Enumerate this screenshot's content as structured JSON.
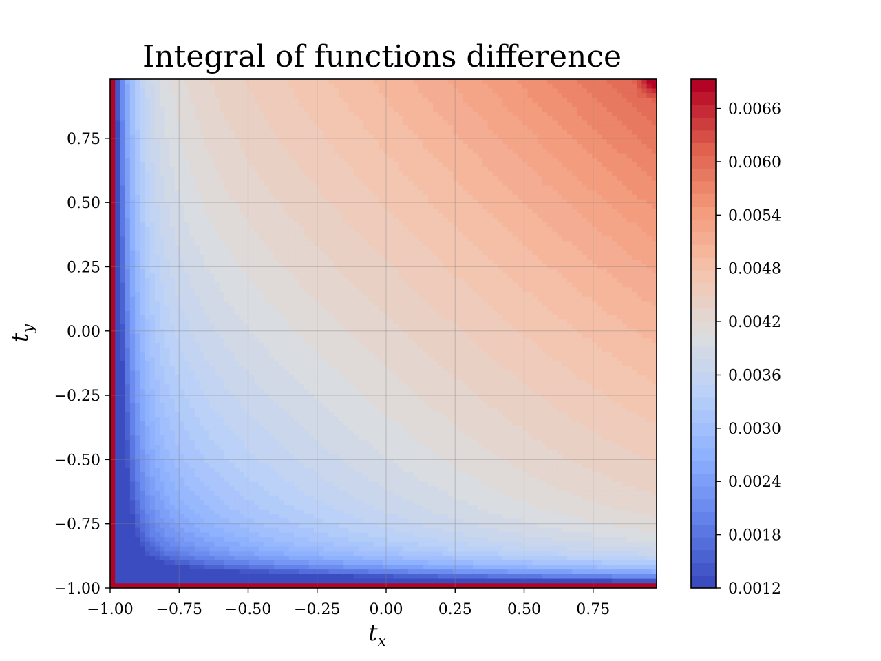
{
  "chart_data": {
    "type": "heatmap",
    "title": "Integral of functions difference",
    "xlabel": {
      "base": "t",
      "sub": "x"
    },
    "ylabel": {
      "base": "t",
      "sub": "y"
    },
    "xlim": [
      -1.0,
      0.98
    ],
    "ylim": [
      -1.0,
      0.98
    ],
    "grid": true,
    "colormap": "coolwarm",
    "contour_levels": 40,
    "z_range": [
      0.0012,
      0.0069
    ],
    "z_formula": "0.0043 + 0.0014*(tx + ty)/2 + 0.0008*tx*ty*((tx+ty)/2); edges at tx=-1 or ty=-1 rise to max",
    "x_ticks": [
      {
        "value": -1.0,
        "label": "−1.00"
      },
      {
        "value": -0.75,
        "label": "−0.75"
      },
      {
        "value": -0.5,
        "label": "−0.50"
      },
      {
        "value": -0.25,
        "label": "−0.25"
      },
      {
        "value": 0.0,
        "label": "0.00"
      },
      {
        "value": 0.25,
        "label": "0.25"
      },
      {
        "value": 0.5,
        "label": "0.50"
      },
      {
        "value": 0.75,
        "label": "0.75"
      }
    ],
    "y_ticks": [
      {
        "value": -1.0,
        "label": "−1.00"
      },
      {
        "value": -0.75,
        "label": "−0.75"
      },
      {
        "value": -0.5,
        "label": "−0.50"
      },
      {
        "value": -0.25,
        "label": "−0.25"
      },
      {
        "value": 0.0,
        "label": "0.00"
      },
      {
        "value": 0.25,
        "label": "0.25"
      },
      {
        "value": 0.5,
        "label": "0.50"
      },
      {
        "value": 0.75,
        "label": "0.75"
      }
    ],
    "colorbar_ticks": [
      {
        "value": 0.0012,
        "label": "0.0012"
      },
      {
        "value": 0.0018,
        "label": "0.0018"
      },
      {
        "value": 0.0024,
        "label": "0.0024"
      },
      {
        "value": 0.003,
        "label": "0.0030"
      },
      {
        "value": 0.0036,
        "label": "0.0036"
      },
      {
        "value": 0.0042,
        "label": "0.0042"
      },
      {
        "value": 0.0048,
        "label": "0.0048"
      },
      {
        "value": 0.0054,
        "label": "0.0054"
      },
      {
        "value": 0.006,
        "label": "0.0060"
      },
      {
        "value": 0.0066,
        "label": "0.0066"
      }
    ]
  }
}
